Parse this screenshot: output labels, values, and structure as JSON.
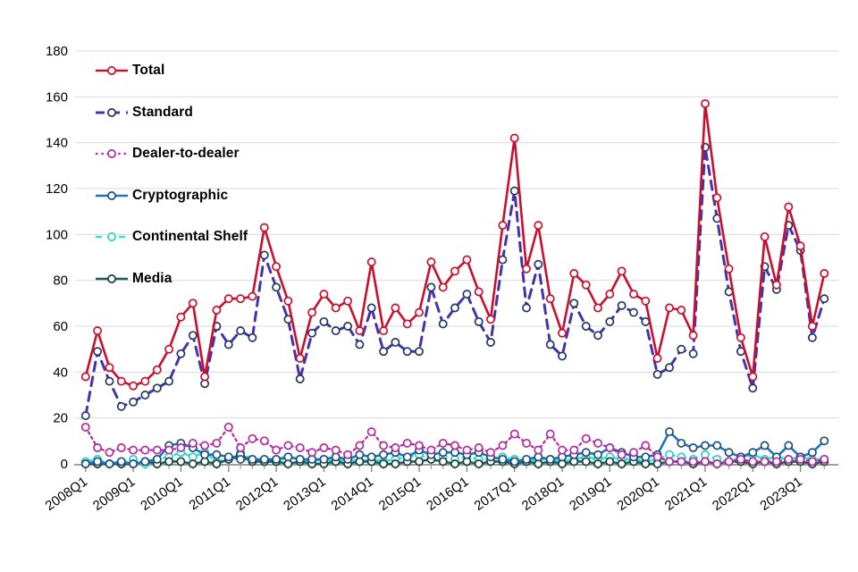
{
  "chart_data": {
    "type": "line",
    "title": "",
    "xlabel": "",
    "ylabel": "",
    "ylim": [
      0,
      180
    ],
    "ytick_step": 20,
    "grid": "horizontal",
    "legend_position": "top-left-overlay",
    "x_tick_labels": [
      "2008Q1",
      "2009Q1",
      "2010Q1",
      "2011Q1",
      "2012Q1",
      "2013Q1",
      "2014Q1",
      "2015Q1",
      "2016Q1",
      "2017Q1",
      "2018Q1",
      "2019Q1",
      "2020Q1",
      "2021Q1",
      "2022Q1",
      "2023Q1"
    ],
    "x_start": "2008Q1",
    "x_end": "2023Q3",
    "points_per_series": 63,
    "series": [
      {
        "name": "Total",
        "color": "#c8102e",
        "marker_color": "#c8102e",
        "dash": "solid",
        "width": 2.6,
        "values": [
          38,
          58,
          42,
          36,
          34,
          36,
          41,
          50,
          64,
          70,
          38,
          67,
          72,
          72,
          73,
          103,
          86,
          71,
          46,
          66,
          74,
          68,
          71,
          58,
          88,
          58,
          68,
          61,
          66,
          88,
          77,
          84,
          89,
          75,
          63,
          104,
          142,
          85,
          104,
          72,
          57,
          83,
          78,
          68,
          74,
          84,
          74,
          71,
          46,
          68,
          67,
          56,
          157,
          116,
          85,
          55,
          38,
          99,
          78,
          112,
          95,
          60,
          83
        ]
      },
      {
        "name": "Standard",
        "color": "#4733a8",
        "marker_color": "#1f3864",
        "dash": "long-dash",
        "width": 3,
        "values": [
          21,
          49,
          36,
          25,
          27,
          30,
          33,
          36,
          48,
          56,
          35,
          60,
          52,
          58,
          55,
          91,
          77,
          63,
          37,
          57,
          62,
          58,
          60,
          52,
          68,
          49,
          53,
          49,
          49,
          77,
          61,
          68,
          74,
          62,
          53,
          89,
          119,
          68,
          87,
          52,
          47,
          70,
          60,
          56,
          62,
          69,
          66,
          62,
          39,
          42,
          50,
          48,
          138,
          107,
          75,
          49,
          33,
          86,
          76,
          104,
          93,
          55,
          72
        ]
      },
      {
        "name": "Dealer-to-dealer",
        "color": "#b5289e",
        "marker_color": "#b5289e",
        "dash": "dot",
        "width": 2.2,
        "values": [
          16,
          7,
          5,
          7,
          6,
          6,
          6,
          6,
          7,
          9,
          8,
          9,
          16,
          7,
          11,
          10,
          6,
          8,
          7,
          5,
          7,
          6,
          4,
          8,
          14,
          8,
          7,
          9,
          8,
          6,
          9,
          8,
          6,
          7,
          5,
          8,
          13,
          9,
          6,
          13,
          6,
          6,
          11,
          9,
          7,
          4,
          5,
          8,
          3,
          1,
          1,
          1,
          1,
          0,
          1,
          2,
          1,
          1,
          1,
          2,
          2,
          1,
          2
        ]
      },
      {
        "name": "Cryptographic",
        "color": "#2272c3",
        "marker_color": "#1f4e79",
        "dash": "solid",
        "width": 2.6,
        "values": [
          0,
          1,
          0,
          1,
          0,
          1,
          2,
          8,
          9,
          7,
          4,
          4,
          3,
          2,
          2,
          2,
          2,
          3,
          2,
          2,
          2,
          3,
          2,
          4,
          3,
          4,
          5,
          3,
          6,
          4,
          5,
          5,
          4,
          5,
          3,
          2,
          1,
          2,
          3,
          2,
          3,
          4,
          5,
          4,
          7,
          5,
          3,
          3,
          4,
          14,
          9,
          7,
          8,
          8,
          5,
          3,
          5,
          8,
          3,
          8,
          3,
          5,
          10
        ]
      },
      {
        "name": "Continental Shelf",
        "color": "#30e5d8",
        "marker_color": "#2ad0c4",
        "dash": "dash",
        "width": 2.6,
        "values": [
          1,
          2,
          0,
          1,
          2,
          0,
          2,
          3,
          5,
          3,
          5,
          1,
          2,
          5,
          2,
          1,
          1,
          3,
          2,
          1,
          2,
          1,
          2,
          1,
          2,
          1,
          2,
          3,
          4,
          2,
          3,
          2,
          3,
          2,
          2,
          3,
          2,
          1,
          2,
          2,
          1,
          2,
          3,
          2,
          3,
          2,
          2,
          1,
          2,
          4,
          3,
          2,
          4,
          2,
          1,
          3,
          4,
          2,
          3,
          2,
          3,
          2,
          2
        ]
      },
      {
        "name": "Media",
        "color": "#1f5f5b",
        "marker_color": "#17403c",
        "dash": "solid",
        "width": 2.6,
        "values": [
          0,
          0,
          0,
          0,
          0,
          1,
          0,
          1,
          1,
          0,
          1,
          0,
          2,
          4,
          1,
          1,
          1,
          0,
          1,
          0,
          0,
          1,
          0,
          1,
          1,
          0,
          0,
          1,
          1,
          2,
          1,
          0,
          1,
          0,
          1,
          1,
          0,
          1,
          0,
          1,
          0,
          1,
          1,
          0,
          1,
          0,
          1,
          0,
          0,
          1,
          1,
          0,
          1,
          0,
          1,
          1,
          0,
          1,
          0,
          1,
          1,
          0,
          1
        ]
      }
    ],
    "colors": {
      "gridline": "#d9d9d9",
      "axis_line": "#7f7f7f",
      "tick": "#a6a6a6",
      "label_text": "#000000",
      "background": "#ffffff"
    }
  }
}
